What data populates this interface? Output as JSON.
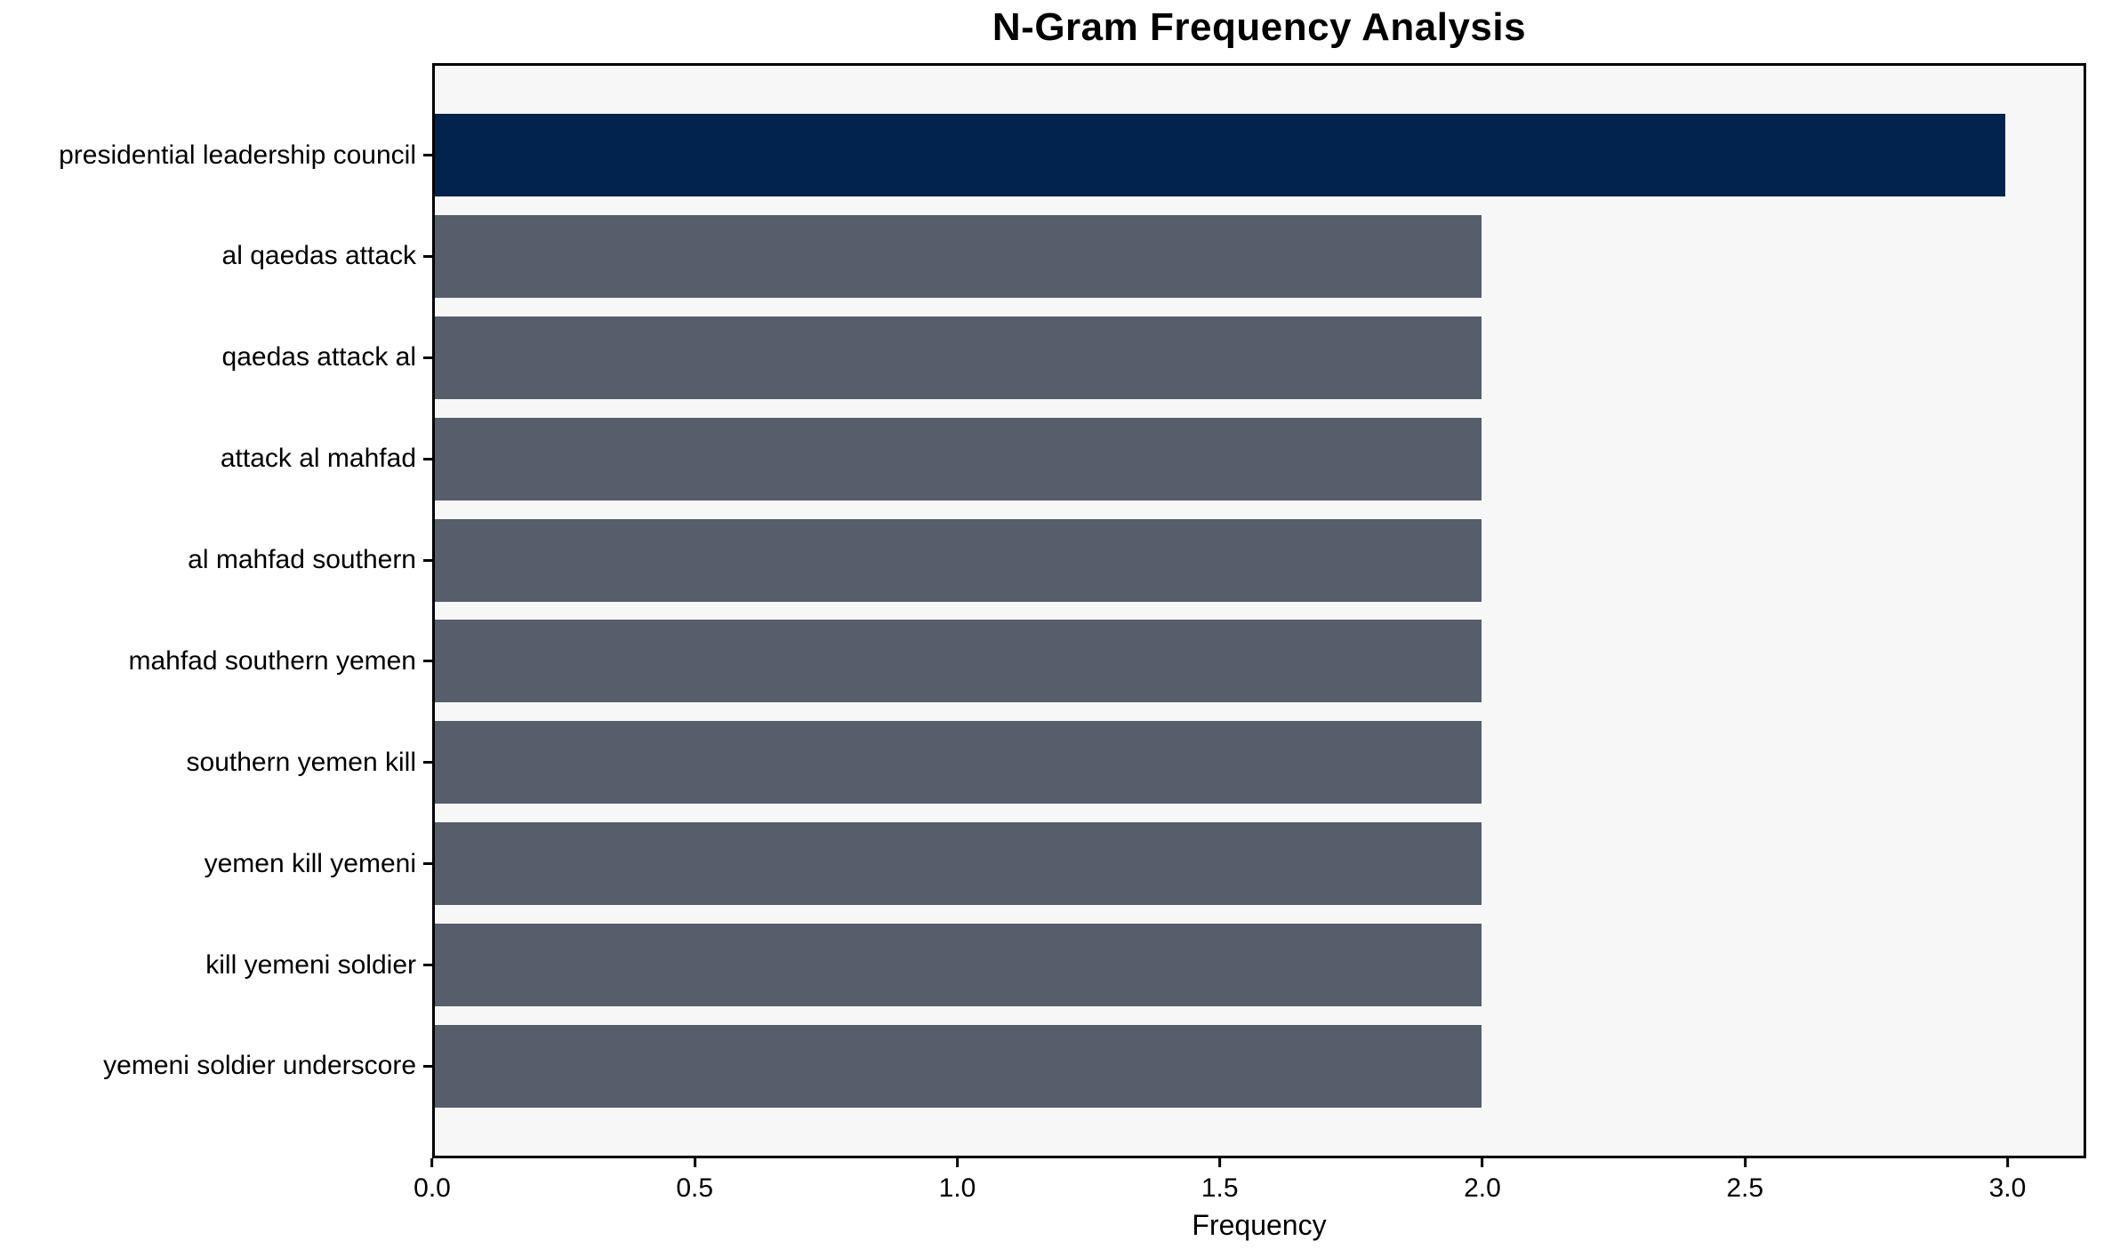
{
  "chart_data": {
    "type": "bar",
    "orientation": "horizontal",
    "title": "N-Gram Frequency Analysis",
    "xlabel": "Frequency",
    "ylabel": "",
    "categories": [
      "presidential leadership council",
      "al qaedas attack",
      "qaedas attack al",
      "attack al mahfad",
      "al mahfad southern",
      "mahfad southern yemen",
      "southern yemen kill",
      "yemen kill yemeni",
      "kill yemeni soldier",
      "yemeni soldier underscore"
    ],
    "values": [
      3,
      2,
      2,
      2,
      2,
      2,
      2,
      2,
      2,
      2
    ],
    "xlim": [
      0,
      3.15
    ],
    "xtick_values": [
      0,
      0.5,
      1.0,
      1.5,
      2.0,
      2.5,
      3.0
    ],
    "xtick_labels": [
      "0.0",
      "0.5",
      "1.0",
      "1.5",
      "2.0",
      "2.5",
      "3.0"
    ],
    "grid": false,
    "legend": null,
    "colors": {
      "highlight_bar": "#02234E",
      "bar": "#565D6B",
      "plot_background": "#F7F7F8",
      "figure_background": "#FFFFFF",
      "spine": "#000000",
      "text": "#000000"
    }
  }
}
